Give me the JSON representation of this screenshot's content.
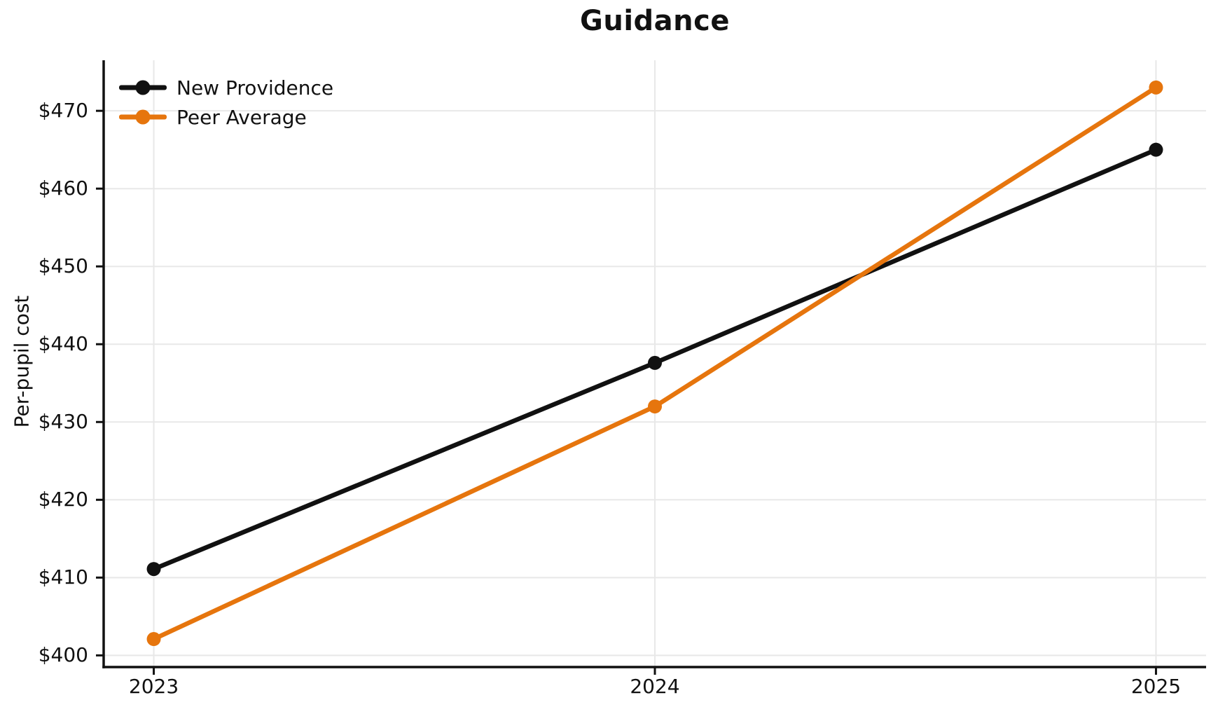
{
  "figure": {
    "title": "Guidance"
  },
  "style": {
    "background": "#ffffff",
    "grid_color": "#e8e8e8",
    "axis_color": "#111111",
    "text_color": "#111111"
  },
  "chart_data": {
    "type": "line",
    "title": "Guidance",
    "xlabel": "",
    "ylabel": "Per-pupil cost",
    "x": [
      2023,
      2024,
      2025
    ],
    "x_tick_labels": [
      "2023",
      "2024",
      "2025"
    ],
    "y_ticks": [
      400,
      410,
      420,
      430,
      440,
      450,
      460,
      470
    ],
    "y_tick_prefix": "$",
    "xlim": [
      2022.9,
      2025.1
    ],
    "ylim": [
      398.5,
      476.5
    ],
    "grid": true,
    "legend_position": "upper-left",
    "legend_frame": false,
    "series": [
      {
        "name": "New Providence",
        "color": "#111111",
        "values": [
          411.1,
          437.6,
          465.0
        ]
      },
      {
        "name": "Peer Average",
        "color": "#E6750D",
        "values": [
          402.1,
          432.0,
          473.0
        ]
      }
    ]
  }
}
